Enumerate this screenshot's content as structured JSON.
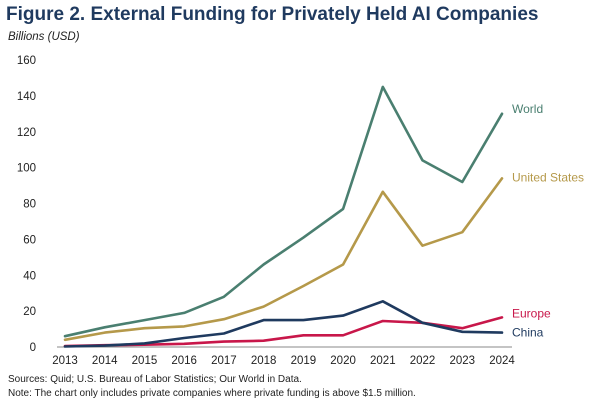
{
  "title": "Figure 2. External Funding for Privately Held AI Companies",
  "ylabel": "Billions (USD)",
  "source": "Sources: Quid; U.S. Bureau of Labor Statistics; Our World in Data.",
  "note": "Note: The chart only includes private companies where private funding is above $1.5 million.",
  "chart_data": {
    "type": "line",
    "title": "Figure 2. External Funding for Privately Held AI Companies",
    "ylabel": "Billions (USD)",
    "xlabel": "",
    "x": [
      2013,
      2014,
      2015,
      2016,
      2017,
      2018,
      2019,
      2020,
      2021,
      2022,
      2023,
      2024
    ],
    "ylim": [
      0,
      160
    ],
    "yticks": [
      0,
      20,
      40,
      60,
      80,
      100,
      120,
      140,
      160
    ],
    "grid": false,
    "legend": "direct labels at right end of lines",
    "series": [
      {
        "name": "World",
        "color": "#4a7f70",
        "values": [
          6,
          11,
          15,
          19,
          28,
          46,
          61,
          77,
          145,
          104,
          92,
          130
        ]
      },
      {
        "name": "United States",
        "color": "#b5994a",
        "values": [
          4,
          8,
          10.5,
          11.5,
          15.5,
          22.5,
          34,
          46,
          86.5,
          56.5,
          64,
          94
        ]
      },
      {
        "name": "Europe",
        "color": "#c8174a",
        "values": [
          0.5,
          1,
          1.3,
          1.8,
          3,
          3.5,
          6.5,
          6.5,
          14.5,
          13.5,
          10.5,
          16.5
        ]
      },
      {
        "name": "China",
        "color": "#1f3a5f",
        "values": [
          0.3,
          0.8,
          2,
          5,
          7.5,
          15,
          15,
          17.5,
          25.5,
          13.5,
          8.5,
          8
        ]
      }
    ]
  }
}
